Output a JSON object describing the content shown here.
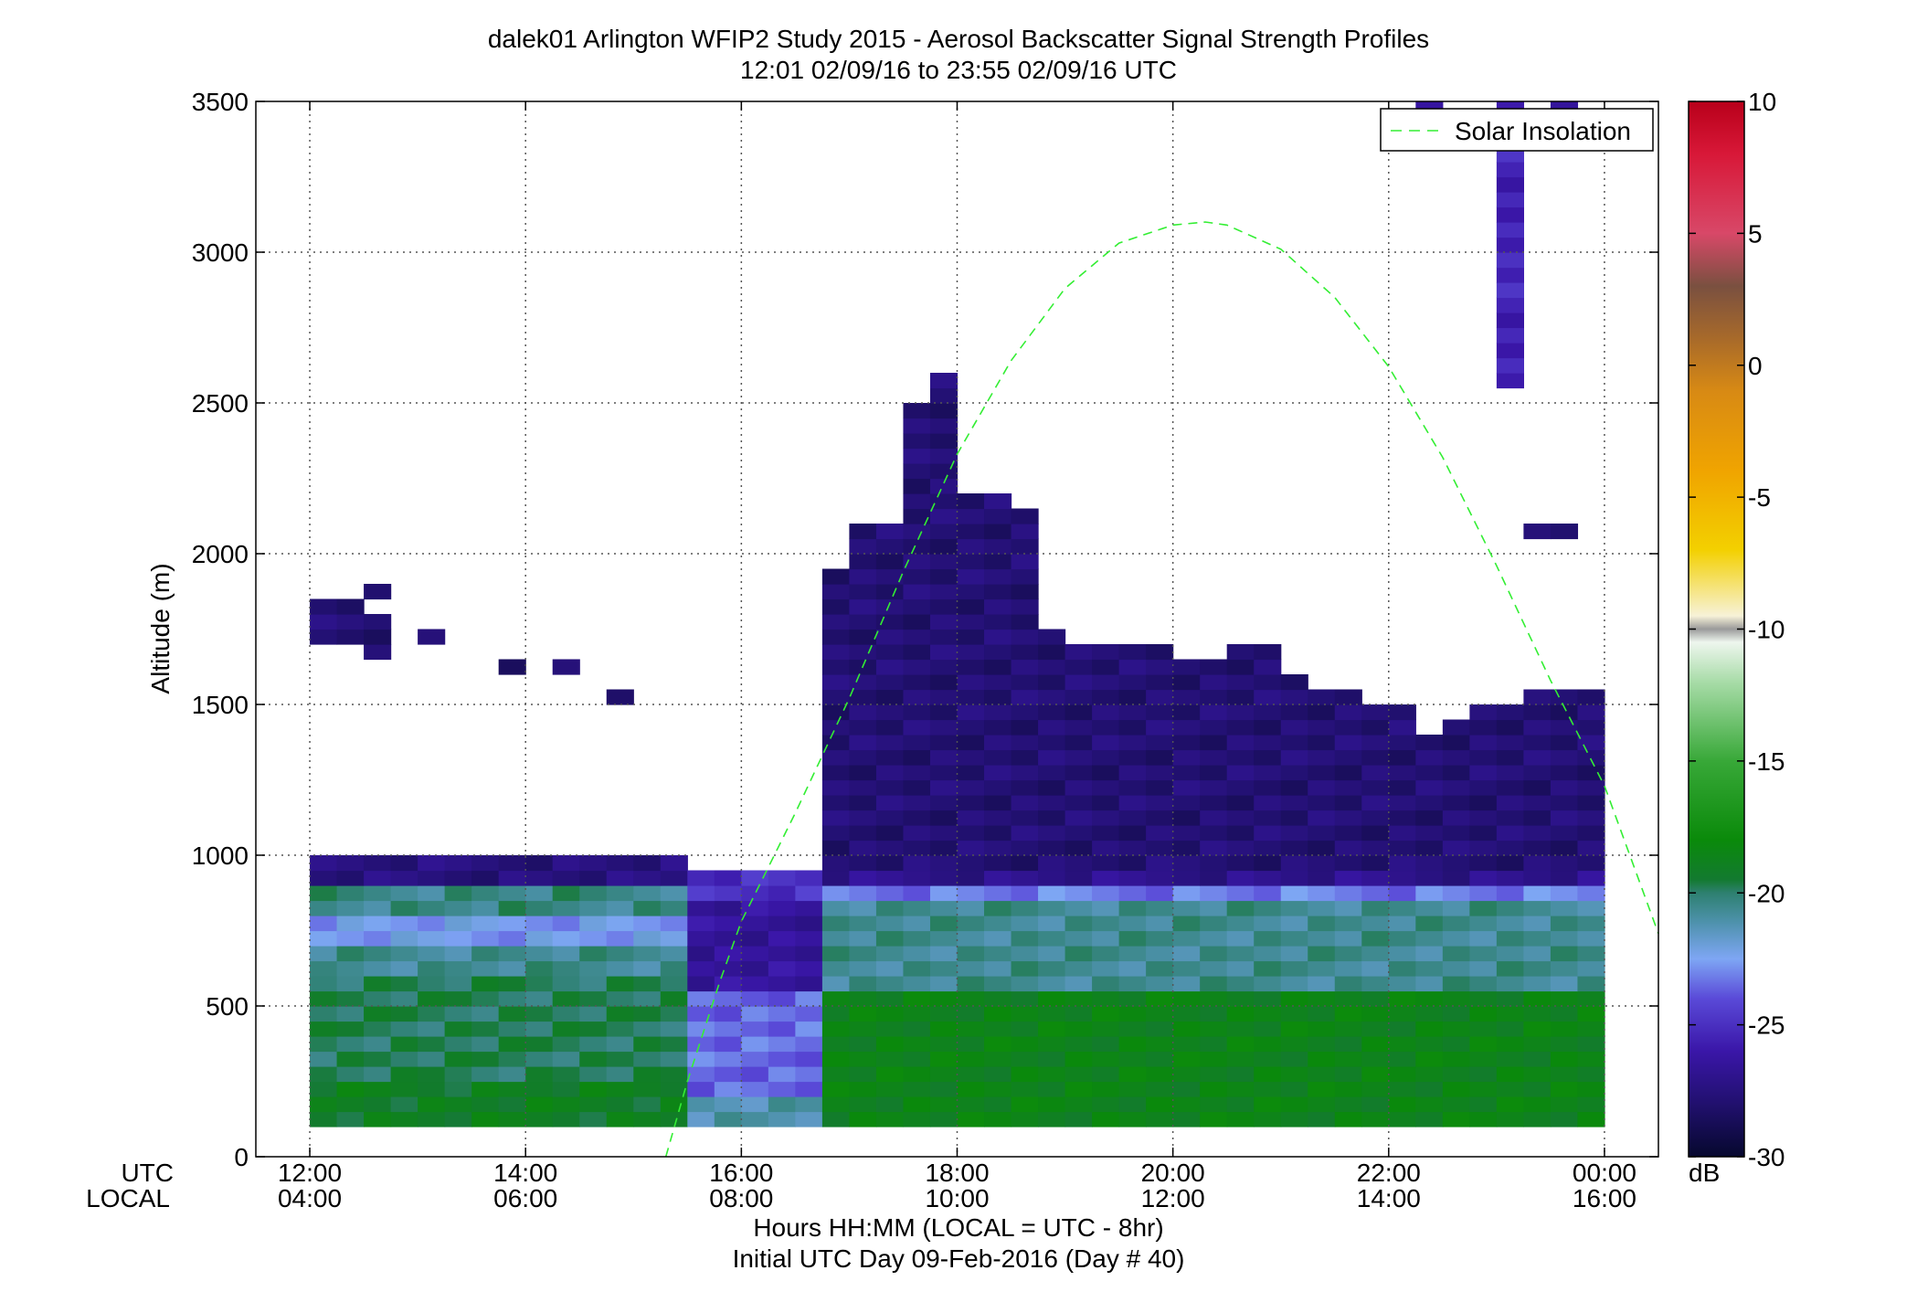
{
  "chart_data": {
    "type": "heatmap",
    "title": "dalek01 Arlington WFIP2 Study 2015 - Aerosol Backscatter Signal Strength Profiles",
    "subtitle": "12:01 02/09/16 to 23:55 02/09/16  UTC",
    "ylabel": "Altitude (m)",
    "xlabel": "Hours HH:MM  (LOCAL = UTC - 8hr)",
    "xlabel2": "Initial UTC Day 09-Feb-2016 (Day # 40)",
    "row_label_utc": "UTC",
    "row_label_local": "LOCAL",
    "xlim_hours": [
      11.5,
      24.5
    ],
    "ylim": [
      0,
      3500
    ],
    "xticks": [
      {
        "utc": "12:00",
        "local": "04:00",
        "hour": 12
      },
      {
        "utc": "14:00",
        "local": "06:00",
        "hour": 14
      },
      {
        "utc": "16:00",
        "local": "08:00",
        "hour": 16
      },
      {
        "utc": "18:00",
        "local": "10:00",
        "hour": 18
      },
      {
        "utc": "20:00",
        "local": "12:00",
        "hour": 20
      },
      {
        "utc": "22:00",
        "local": "14:00",
        "hour": 22
      },
      {
        "utc": "00:00",
        "local": "16:00",
        "hour": 24
      }
    ],
    "yticks": [
      0,
      500,
      1000,
      1500,
      2000,
      2500,
      3000,
      3500
    ],
    "grid": true,
    "legend": {
      "placement": "top-right",
      "entries": [
        {
          "name": "Solar Insolation",
          "style": "dashed",
          "color": "#33ee33"
        }
      ]
    },
    "solar_insolation": {
      "hours": [
        15.3,
        15.5,
        15.8,
        16.0,
        16.5,
        17.0,
        17.5,
        18.0,
        18.5,
        19.0,
        19.5,
        20.0,
        20.3,
        20.5,
        21.0,
        21.5,
        22.0,
        22.5,
        23.0,
        23.5,
        24.0,
        24.5
      ],
      "altitude": [
        0,
        250,
        580,
        780,
        1140,
        1520,
        1940,
        2330,
        2640,
        2880,
        3030,
        3090,
        3100,
        3090,
        3010,
        2850,
        2620,
        2320,
        1960,
        1580,
        1230,
        740
      ]
    },
    "colorbar": {
      "label": "dB",
      "min": -30,
      "max": 10,
      "ticks": [
        10,
        5,
        0,
        -5,
        -10,
        -15,
        -20,
        -25,
        -30
      ],
      "stops": [
        {
          "v": -30,
          "c": "#06082e"
        },
        {
          "v": -28,
          "c": "#21106e"
        },
        {
          "v": -26,
          "c": "#3a16a8"
        },
        {
          "v": -24,
          "c": "#5a4ad8"
        },
        {
          "v": -22.5,
          "c": "#7ea6f4"
        },
        {
          "v": -21,
          "c": "#4a90a6"
        },
        {
          "v": -20,
          "c": "#2e8070"
        },
        {
          "v": -19.5,
          "c": "#137a30"
        },
        {
          "v": -18,
          "c": "#0a8a0a"
        },
        {
          "v": -15,
          "c": "#38a838"
        },
        {
          "v": -12,
          "c": "#a8dca8"
        },
        {
          "v": -10.5,
          "c": "#eef6ee"
        },
        {
          "v": -10,
          "c": "#9a9a9a"
        },
        {
          "v": -9.5,
          "c": "#f7f2d8"
        },
        {
          "v": -7,
          "c": "#f3d000"
        },
        {
          "v": -4,
          "c": "#f0a400"
        },
        {
          "v": -1,
          "c": "#d88a14"
        },
        {
          "v": 1,
          "c": "#a86a2a"
        },
        {
          "v": 3,
          "c": "#7a5040"
        },
        {
          "v": 5,
          "c": "#d84868"
        },
        {
          "v": 8,
          "c": "#d81838"
        },
        {
          "v": 10,
          "c": "#b8001a"
        }
      ]
    },
    "cell_width_hours": 0.25,
    "cell_height_m": 50,
    "bands": [
      {
        "t0": 12.0,
        "t1": 15.5,
        "h0": 100,
        "h1": 250,
        "v": -19.0
      },
      {
        "t0": 12.0,
        "t1": 15.5,
        "h0": 250,
        "h1": 600,
        "v": -19.8
      },
      {
        "t0": 12.0,
        "t1": 15.5,
        "h0": 600,
        "h1": 700,
        "v": -20.6
      },
      {
        "t0": 12.0,
        "t1": 15.5,
        "h0": 700,
        "h1": 800,
        "v": -22.6
      },
      {
        "t0": 12.0,
        "t1": 15.5,
        "h0": 800,
        "h1": 900,
        "v": -20.4
      },
      {
        "t0": 12.0,
        "t1": 15.5,
        "h0": 900,
        "h1": 1000,
        "v": -27.5
      },
      {
        "t0": 15.5,
        "t1": 16.75,
        "h0": 100,
        "h1": 200,
        "v": -21.2
      },
      {
        "t0": 15.5,
        "t1": 16.75,
        "h0": 200,
        "h1": 550,
        "v": -23.5
      },
      {
        "t0": 15.5,
        "t1": 16.75,
        "h0": 550,
        "h1": 850,
        "v": -26.5
      },
      {
        "t0": 15.5,
        "t1": 16.75,
        "h0": 850,
        "h1": 950,
        "v": -25.0
      },
      {
        "t0": 16.75,
        "t1": 24.0,
        "h0": 100,
        "h1": 550,
        "v": -18.6
      },
      {
        "t0": 16.75,
        "t1": 24.0,
        "h0": 550,
        "h1": 850,
        "v": -20.6
      },
      {
        "t0": 16.75,
        "t1": 24.0,
        "h0": 850,
        "h1": 900,
        "v": -23.2
      },
      {
        "t0": 16.75,
        "t1": 24.0,
        "h0": 900,
        "h1": 950,
        "v": -27.0
      },
      {
        "t0": 16.75,
        "t1": 17.0,
        "h0": 950,
        "h1": 1950,
        "v": -27.8
      },
      {
        "t0": 17.0,
        "t1": 17.5,
        "h0": 950,
        "h1": 2100,
        "v": -27.8
      },
      {
        "t0": 17.5,
        "t1": 17.75,
        "h0": 950,
        "h1": 2500,
        "v": -27.8
      },
      {
        "t0": 17.75,
        "t1": 18.0,
        "h0": 950,
        "h1": 2600,
        "v": -27.8
      },
      {
        "t0": 18.0,
        "t1": 18.5,
        "h0": 950,
        "h1": 2200,
        "v": -27.8
      },
      {
        "t0": 18.5,
        "t1": 18.75,
        "h0": 950,
        "h1": 2150,
        "v": -27.8
      },
      {
        "t0": 18.75,
        "t1": 19.0,
        "h0": 950,
        "h1": 1750,
        "v": -27.8
      },
      {
        "t0": 19.0,
        "t1": 20.0,
        "h0": 950,
        "h1": 1700,
        "v": -27.8
      },
      {
        "t0": 20.0,
        "t1": 20.5,
        "h0": 950,
        "h1": 1650,
        "v": -27.8
      },
      {
        "t0": 20.5,
        "t1": 21.0,
        "h0": 950,
        "h1": 1700,
        "v": -27.8
      },
      {
        "t0": 21.0,
        "t1": 21.25,
        "h0": 950,
        "h1": 1600,
        "v": -27.8
      },
      {
        "t0": 21.25,
        "t1": 21.75,
        "h0": 950,
        "h1": 1550,
        "v": -27.8
      },
      {
        "t0": 21.75,
        "t1": 22.25,
        "h0": 950,
        "h1": 1500,
        "v": -27.8
      },
      {
        "t0": 22.25,
        "t1": 22.5,
        "h0": 950,
        "h1": 1400,
        "v": -27.8
      },
      {
        "t0": 22.5,
        "t1": 22.75,
        "h0": 950,
        "h1": 1450,
        "v": -27.8
      },
      {
        "t0": 22.75,
        "t1": 23.25,
        "h0": 950,
        "h1": 1500,
        "v": -27.8
      },
      {
        "t0": 23.25,
        "t1": 24.0,
        "h0": 950,
        "h1": 1550,
        "v": -27.8
      },
      {
        "t0": 12.0,
        "t1": 12.5,
        "h0": 1700,
        "h1": 1850,
        "v": -27.8
      },
      {
        "t0": 12.5,
        "t1": 12.75,
        "h0": 1650,
        "h1": 1800,
        "v": -27.8
      },
      {
        "t0": 12.5,
        "t1": 12.75,
        "h0": 1850,
        "h1": 1900,
        "v": -27.8
      },
      {
        "t0": 13.0,
        "t1": 13.25,
        "h0": 1700,
        "h1": 1750,
        "v": -27.8
      },
      {
        "t0": 13.75,
        "t1": 14.0,
        "h0": 1600,
        "h1": 1650,
        "v": -27.8
      },
      {
        "t0": 14.25,
        "t1": 14.5,
        "h0": 1600,
        "h1": 1650,
        "v": -27.8
      },
      {
        "t0": 14.75,
        "t1": 15.0,
        "h0": 1500,
        "h1": 1550,
        "v": -27.8
      },
      {
        "t0": 23.25,
        "t1": 23.75,
        "h0": 2050,
        "h1": 2100,
        "v": -27.8
      },
      {
        "t0": 23.0,
        "t1": 23.25,
        "h0": 2550,
        "h1": 3500,
        "v": -25.5
      },
      {
        "t0": 22.25,
        "t1": 22.5,
        "h0": 3450,
        "h1": 3500,
        "v": -27.0
      },
      {
        "t0": 23.5,
        "t1": 23.75,
        "h0": 3450,
        "h1": 3500,
        "v": -27.0
      }
    ]
  }
}
